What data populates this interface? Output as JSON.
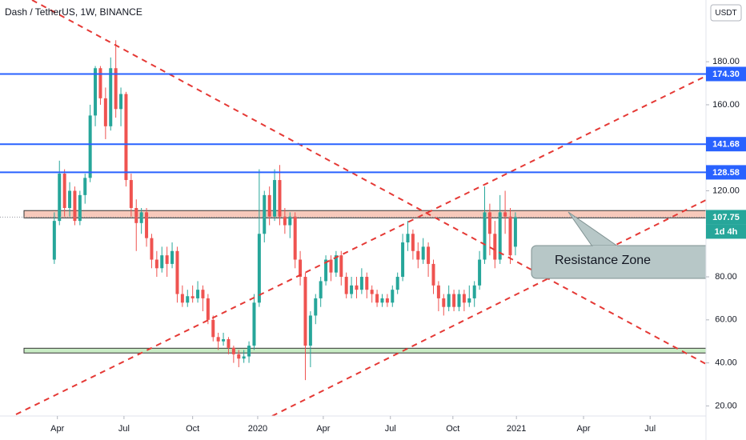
{
  "chart_data": {
    "type": "candlestick",
    "title": "Dash / TetherUS, 1W, BINANCE",
    "currency": "USDT",
    "up_color": "#26a69a",
    "down_color": "#ef5350",
    "open": [
      88,
      106,
      128,
      112,
      120,
      106,
      118,
      126,
      155,
      177,
      163,
      150,
      177,
      158,
      165,
      125,
      112,
      105,
      110,
      98,
      88,
      84,
      90,
      86,
      92,
      72,
      68,
      71,
      70,
      74,
      70,
      60,
      52,
      50,
      51,
      47,
      44,
      42,
      43,
      48,
      68,
      100,
      118,
      108,
      125,
      108,
      104,
      108,
      88,
      80,
      48,
      62,
      70,
      78,
      88,
      82,
      90,
      80,
      72,
      76,
      74,
      80,
      74,
      72,
      68,
      70,
      68,
      74,
      80,
      96,
      100,
      92,
      88,
      94,
      86,
      76,
      70,
      66,
      72,
      66,
      72,
      68,
      70,
      76,
      88,
      110,
      100,
      88,
      110,
      108,
      94
    ],
    "high": [
      110,
      134,
      130,
      124,
      122,
      120,
      128,
      160,
      178,
      178,
      168,
      182,
      190,
      168,
      166,
      128,
      116,
      112,
      112,
      100,
      92,
      94,
      94,
      96,
      94,
      76,
      74,
      76,
      78,
      76,
      72,
      62,
      54,
      54,
      52,
      48,
      46,
      46,
      50,
      72,
      130,
      120,
      122,
      130,
      132,
      112,
      110,
      110,
      92,
      82,
      64,
      72,
      80,
      90,
      90,
      92,
      92,
      82,
      80,
      80,
      84,
      82,
      76,
      74,
      72,
      72,
      76,
      82,
      100,
      106,
      102,
      96,
      98,
      96,
      88,
      78,
      72,
      76,
      74,
      74,
      74,
      76,
      78,
      92,
      122,
      114,
      106,
      118,
      120,
      112,
      110
    ],
    "low": [
      86,
      104,
      108,
      108,
      104,
      104,
      114,
      124,
      150,
      160,
      144,
      148,
      154,
      150,
      122,
      108,
      92,
      100,
      94,
      84,
      80,
      82,
      80,
      84,
      68,
      66,
      66,
      68,
      68,
      64,
      58,
      50,
      46,
      48,
      44,
      40,
      38,
      40,
      40,
      46,
      66,
      96,
      104,
      106,
      104,
      100,
      98,
      84,
      76,
      32,
      38,
      58,
      66,
      76,
      78,
      80,
      76,
      70,
      70,
      70,
      72,
      70,
      68,
      66,
      66,
      66,
      66,
      72,
      78,
      92,
      88,
      84,
      86,
      80,
      72,
      64,
      62,
      64,
      64,
      64,
      64,
      66,
      66,
      74,
      86,
      90,
      84,
      86,
      100,
      86,
      90
    ],
    "close": [
      106,
      128,
      112,
      120,
      106,
      118,
      126,
      155,
      177,
      163,
      150,
      177,
      158,
      165,
      125,
      112,
      105,
      110,
      98,
      88,
      84,
      90,
      86,
      92,
      72,
      68,
      71,
      70,
      74,
      70,
      60,
      52,
      50,
      51,
      47,
      44,
      42,
      43,
      48,
      68,
      100,
      118,
      108,
      125,
      108,
      104,
      108,
      88,
      80,
      48,
      62,
      70,
      78,
      88,
      82,
      90,
      80,
      72,
      76,
      74,
      80,
      74,
      72,
      68,
      70,
      68,
      74,
      80,
      96,
      100,
      92,
      88,
      94,
      86,
      76,
      70,
      66,
      72,
      66,
      72,
      68,
      70,
      76,
      88,
      110,
      100,
      88,
      110,
      108,
      90,
      107.75
    ],
    "countdown": "1d 4h",
    "xlim": [
      -10.6,
      127.2
    ],
    "xticks": [
      {
        "value": 0.6,
        "label": "Apr"
      },
      {
        "value": 13.6,
        "label": "Jul"
      },
      {
        "value": 27,
        "label": "Oct"
      },
      {
        "value": 39.7,
        "label": "2020"
      },
      {
        "value": 52.5,
        "label": "Apr"
      },
      {
        "value": 65.6,
        "label": "Jul"
      },
      {
        "value": 77.8,
        "label": "Oct"
      },
      {
        "value": 90.2,
        "label": "2021"
      },
      {
        "value": 103.3,
        "label": "Apr"
      },
      {
        "value": 116.3,
        "label": "Jul"
      }
    ],
    "ylim": [
      15.3,
      208.7
    ],
    "yticks": [
      {
        "value": 20,
        "label": "20.00"
      },
      {
        "value": 40,
        "label": "40.00"
      },
      {
        "value": 60,
        "label": "60.00"
      },
      {
        "value": 80,
        "label": "80.00"
      },
      {
        "value": 120,
        "label": "120.00"
      },
      {
        "value": 160,
        "label": "160.00"
      },
      {
        "value": 180,
        "label": "180.00"
      }
    ],
    "levels": [
      {
        "value": 174.3,
        "label": "174.30"
      },
      {
        "value": 141.68,
        "label": "141.68"
      },
      {
        "value": 128.58,
        "label": "128.58"
      }
    ],
    "level_color": "#2962ff",
    "zones": [
      {
        "low": 107.4,
        "high": 110.8,
        "color": "#f7c9bb"
      },
      {
        "low": 44.6,
        "high": 46.8,
        "color": "#c8ecc4"
      }
    ],
    "annotation": "Resistance Zone",
    "grid": false
  }
}
